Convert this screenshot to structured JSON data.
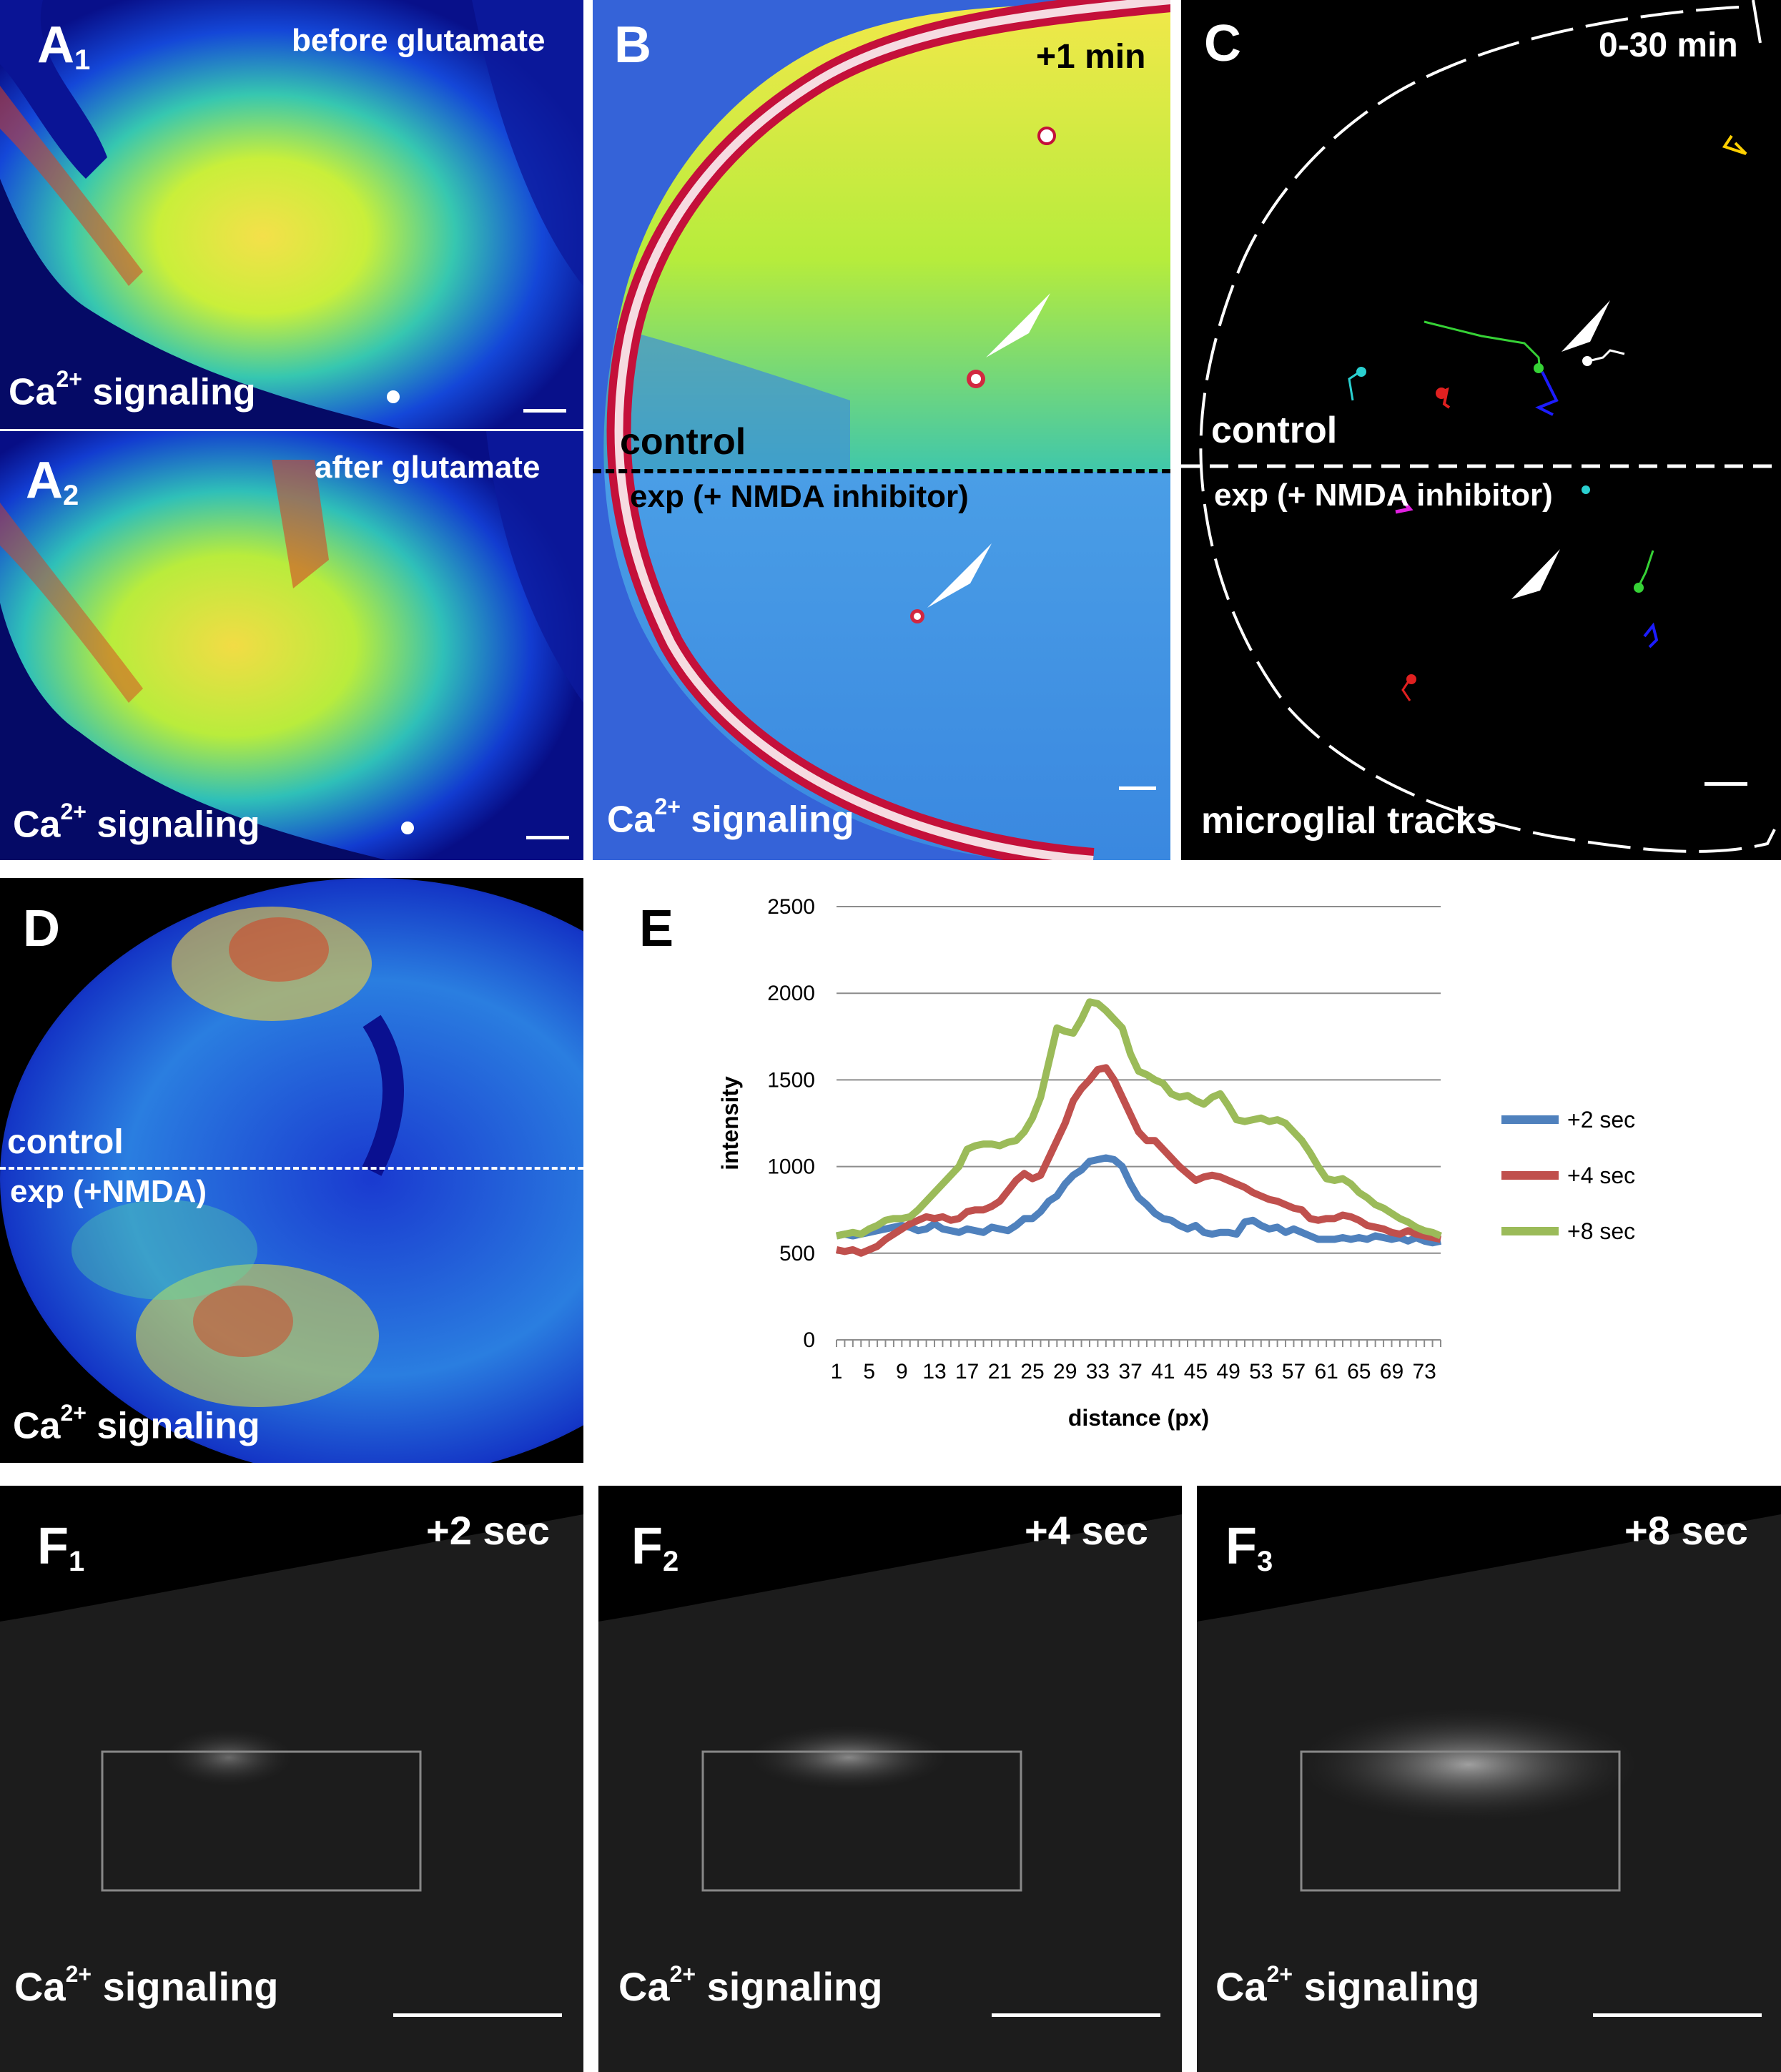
{
  "panels": {
    "A1": {
      "letter": "A",
      "sub": "1",
      "caption": "before glutamate",
      "signal_a": "Ca",
      "signal_sup": "2+",
      "signal_b": " signaling"
    },
    "A2": {
      "letter": "A",
      "sub": "2",
      "caption": "after glutamate",
      "signal_a": "Ca",
      "signal_sup": "2+",
      "signal_b": " signaling"
    },
    "B": {
      "letter": "B",
      "caption": "+1 min",
      "control": "control",
      "exp": "exp (+ NMDA inhibitor)",
      "signal_a": "Ca",
      "signal_sup": "2+",
      "signal_b": "  signaling"
    },
    "C": {
      "letter": "C",
      "caption": "0-30 min",
      "control": "control",
      "exp": "exp (+ NMDA inhibitor)",
      "footer": "microglial tracks"
    },
    "D": {
      "letter": "D",
      "control": "control",
      "exp": "exp (+NMDA)",
      "signal_a": "Ca",
      "signal_sup": "2+",
      "signal_b": " signaling"
    },
    "E": {
      "letter": "E"
    },
    "F1": {
      "letter": "F",
      "sub": "1",
      "caption": "+2 sec",
      "signal_a": "Ca",
      "signal_sup": "2+",
      "signal_b": " signaling"
    },
    "F2": {
      "letter": "F",
      "sub": "2",
      "caption": "+4 sec",
      "signal_a": "Ca",
      "signal_sup": "2+",
      "signal_b": " signaling"
    },
    "F3": {
      "letter": "F",
      "sub": "3",
      "caption": "+8 sec",
      "signal_a": "Ca",
      "signal_sup": "2+",
      "signal_b": " signaling"
    }
  },
  "chart_data": {
    "type": "line",
    "xlabel": "distance (px)",
    "ylabel": "intensity",
    "ylim": [
      0,
      2500
    ],
    "yticks": [
      0,
      500,
      1000,
      1500,
      2000,
      2500
    ],
    "x": [
      1,
      2,
      3,
      4,
      5,
      6,
      7,
      8,
      9,
      10,
      11,
      12,
      13,
      14,
      15,
      16,
      17,
      18,
      19,
      20,
      21,
      22,
      23,
      24,
      25,
      26,
      27,
      28,
      29,
      30,
      31,
      32,
      33,
      34,
      35,
      36,
      37,
      38,
      39,
      40,
      41,
      42,
      43,
      44,
      45,
      46,
      47,
      48,
      49,
      50,
      51,
      52,
      53,
      54,
      55,
      56,
      57,
      58,
      59,
      60,
      61,
      62,
      63,
      64,
      65,
      66,
      67,
      68,
      69,
      70,
      71,
      72,
      73,
      74,
      75
    ],
    "xticks": [
      "1",
      "5",
      "9",
      "13",
      "17",
      "21",
      "25",
      "29",
      "33",
      "37",
      "41",
      "45",
      "49",
      "53",
      "57",
      "61",
      "65",
      "69",
      "73"
    ],
    "grid": true,
    "legend_position": "right",
    "series": [
      {
        "name": "+2 sec",
        "color": "#4f81bd",
        "values": [
          600,
          610,
          600,
          610,
          620,
          630,
          640,
          650,
          660,
          650,
          630,
          640,
          670,
          640,
          630,
          620,
          640,
          630,
          620,
          650,
          640,
          630,
          660,
          700,
          700,
          740,
          800,
          830,
          900,
          950,
          980,
          1030,
          1040,
          1050,
          1040,
          1000,
          900,
          820,
          780,
          730,
          700,
          690,
          660,
          640,
          660,
          620,
          610,
          620,
          620,
          610,
          680,
          690,
          660,
          640,
          650,
          620,
          640,
          620,
          600,
          580,
          580,
          580,
          590,
          580,
          590,
          580,
          600,
          590,
          580,
          590,
          570,
          590,
          570,
          560,
          570
        ]
      },
      {
        "name": "+4 sec",
        "color": "#c0504d",
        "values": [
          520,
          510,
          520,
          500,
          520,
          540,
          580,
          610,
          640,
          670,
          690,
          710,
          700,
          710,
          690,
          700,
          740,
          750,
          750,
          770,
          800,
          860,
          920,
          960,
          930,
          950,
          1050,
          1150,
          1250,
          1380,
          1450,
          1500,
          1560,
          1570,
          1500,
          1400,
          1300,
          1200,
          1150,
          1150,
          1100,
          1050,
          1000,
          960,
          920,
          940,
          950,
          940,
          920,
          900,
          880,
          850,
          830,
          810,
          800,
          780,
          760,
          750,
          700,
          690,
          700,
          700,
          720,
          710,
          690,
          660,
          650,
          640,
          620,
          610,
          630,
          610,
          600,
          590,
          580
        ]
      },
      {
        "name": "+8 sec",
        "color": "#9bbb59",
        "values": [
          600,
          610,
          620,
          610,
          640,
          660,
          690,
          700,
          700,
          710,
          750,
          800,
          850,
          900,
          950,
          1000,
          1100,
          1120,
          1130,
          1130,
          1120,
          1140,
          1150,
          1200,
          1280,
          1400,
          1600,
          1800,
          1780,
          1770,
          1850,
          1950,
          1940,
          1900,
          1850,
          1800,
          1650,
          1550,
          1530,
          1500,
          1480,
          1420,
          1400,
          1410,
          1380,
          1360,
          1400,
          1420,
          1350,
          1270,
          1260,
          1270,
          1280,
          1260,
          1270,
          1250,
          1200,
          1150,
          1080,
          1000,
          930,
          920,
          930,
          900,
          850,
          820,
          780,
          760,
          730,
          700,
          680,
          650,
          630,
          620,
          600
        ]
      }
    ]
  }
}
